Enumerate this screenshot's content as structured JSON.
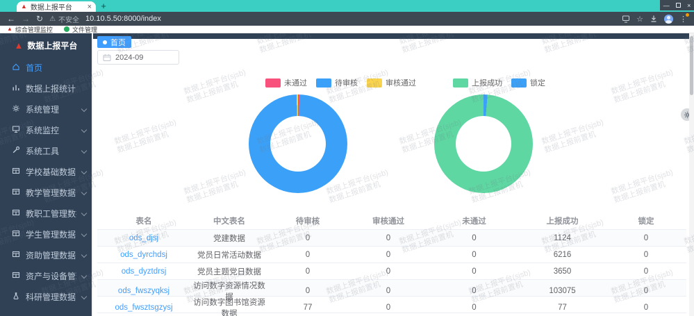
{
  "browser": {
    "tab": {
      "title": "数据上报平台",
      "close_glyph": "×",
      "new_tab_glyph": "+"
    },
    "window_controls": {
      "minimize": "—",
      "close": "×"
    },
    "address": {
      "back_glyph": "←",
      "forward_glyph": "→",
      "reload_glyph": "↻",
      "security_label": "不安全",
      "url": "10.10.5.50:8000/index"
    },
    "bookmarks": [
      {
        "label": "综合管理监控"
      },
      {
        "label": "文件管理"
      }
    ]
  },
  "sidebar": {
    "logo_title": "数据上报平台",
    "items": [
      {
        "label": "首页",
        "icon": "home",
        "active": true,
        "expandable": false
      },
      {
        "label": "数据上报统计",
        "icon": "chart",
        "active": false,
        "expandable": false
      },
      {
        "label": "系统管理",
        "icon": "gear",
        "active": false,
        "expandable": true
      },
      {
        "label": "系统监控",
        "icon": "monitor",
        "active": false,
        "expandable": true
      },
      {
        "label": "系统工具",
        "icon": "tools",
        "active": false,
        "expandable": true
      },
      {
        "label": "学校基础数据",
        "icon": "table",
        "active": false,
        "expandable": true
      },
      {
        "label": "教学管理数据",
        "icon": "table",
        "active": false,
        "expandable": true
      },
      {
        "label": "教职工管理数据",
        "icon": "table",
        "active": false,
        "expandable": true
      },
      {
        "label": "学生管理数据",
        "icon": "table",
        "active": false,
        "expandable": true
      },
      {
        "label": "资助管理数据",
        "icon": "table",
        "active": false,
        "expandable": true
      },
      {
        "label": "资产与设备管理数据",
        "icon": "table",
        "active": false,
        "expandable": true
      },
      {
        "label": "科研管理数据",
        "icon": "flask",
        "active": false,
        "expandable": true
      }
    ]
  },
  "main": {
    "active_tag": "首页",
    "date_filter": {
      "value": "2024-09"
    }
  },
  "chart_data": [
    {
      "type": "pie",
      "subtype": "donut",
      "legend_position": "top",
      "legend": [
        "未通过",
        "待审核",
        "审核通过"
      ],
      "slices": [
        {
          "label": "未通过",
          "color": "#F8517B",
          "pct": 0.5
        },
        {
          "label": "待审核",
          "color": "#3BA1F8",
          "pct": 99.0
        },
        {
          "label": "审核通过",
          "color": "#FBD44D",
          "pct": 0.5
        }
      ]
    },
    {
      "type": "pie",
      "subtype": "donut",
      "legend_position": "top",
      "legend": [
        "上报成功",
        "锁定"
      ],
      "slices": [
        {
          "label": "锁定",
          "color": "#3BA1F8",
          "pct": 1.3
        },
        {
          "label": "上报成功",
          "color": "#5FD7A2",
          "pct": 98.7
        }
      ]
    }
  ],
  "table": {
    "headers": [
      "表名",
      "中文表名",
      "待审核",
      "审核通过",
      "未通过",
      "上报成功",
      "锁定"
    ],
    "rows": [
      [
        "ods_djsj",
        "党建数据",
        "0",
        "0",
        "0",
        "1124",
        "0"
      ],
      [
        "ods_dyrchdsj",
        "党员日常活动数据",
        "0",
        "0",
        "0",
        "6216",
        "0"
      ],
      [
        "ods_dyztdrsj",
        "党员主题党日数据",
        "0",
        "0",
        "0",
        "3650",
        "0"
      ],
      [
        "ods_fwszyqksj",
        "访问数字资源情况数据",
        "0",
        "0",
        "0",
        "103075",
        "0"
      ],
      [
        "ods_fwsztsgzysj",
        "访问数字图书馆资源数据",
        "77",
        "0",
        "0",
        "77",
        "0"
      ]
    ]
  },
  "watermark": {
    "line1": "数据上报平台(sjsb)",
    "line2": "数据上报前置机"
  },
  "colors": {
    "accent": "#409EFF",
    "sidebar_bg": "#304156",
    "chrome_teal": "#3BCFC3",
    "chrome_dark": "#3D4852",
    "link": "#409EFF",
    "pie_pink": "#F8517B",
    "pie_blue": "#3BA1F8",
    "pie_yellow": "#FBD44D",
    "pie_green": "#5FD7A2"
  }
}
